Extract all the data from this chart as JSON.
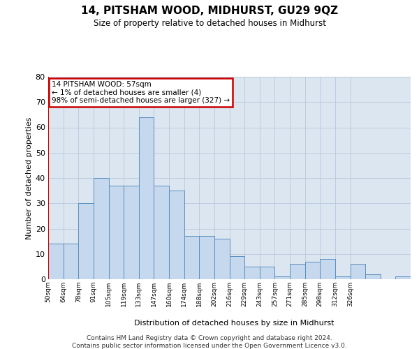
{
  "title": "14, PITSHAM WOOD, MIDHURST, GU29 9QZ",
  "subtitle": "Size of property relative to detached houses in Midhurst",
  "xlabel": "Distribution of detached houses by size in Midhurst",
  "ylabel": "Number of detached properties",
  "bar_values": [
    14,
    14,
    30,
    40,
    37,
    37,
    64,
    37,
    35,
    17,
    17,
    16,
    9,
    5,
    5,
    1,
    6,
    7,
    8,
    1,
    6,
    2,
    0,
    1
  ],
  "x_tick_labels": [
    "50sqm",
    "64sqm",
    "78sqm",
    "91sqm",
    "105sqm",
    "119sqm",
    "133sqm",
    "147sqm",
    "160sqm",
    "174sqm",
    "188sqm",
    "202sqm",
    "216sqm",
    "229sqm",
    "243sqm",
    "257sqm",
    "271sqm",
    "285sqm",
    "298sqm",
    "312sqm",
    "326sqm"
  ],
  "bar_color": "#c5d8ed",
  "bar_edge_color": "#5a8fbf",
  "highlight_color": "#cc0000",
  "annotation_text": "14 PITSHAM WOOD: 57sqm\n← 1% of detached houses are smaller (4)\n98% of semi-detached houses are larger (327) →",
  "annotation_box_color": "#ffffff",
  "annotation_box_edge_color": "#cc0000",
  "ylim": [
    0,
    80
  ],
  "yticks": [
    0,
    10,
    20,
    30,
    40,
    50,
    60,
    70,
    80
  ],
  "grid_color": "#b8c8dc",
  "bg_color": "#dce6f0",
  "footer_line1": "Contains HM Land Registry data © Crown copyright and database right 2024.",
  "footer_line2": "Contains public sector information licensed under the Open Government Licence v3.0."
}
